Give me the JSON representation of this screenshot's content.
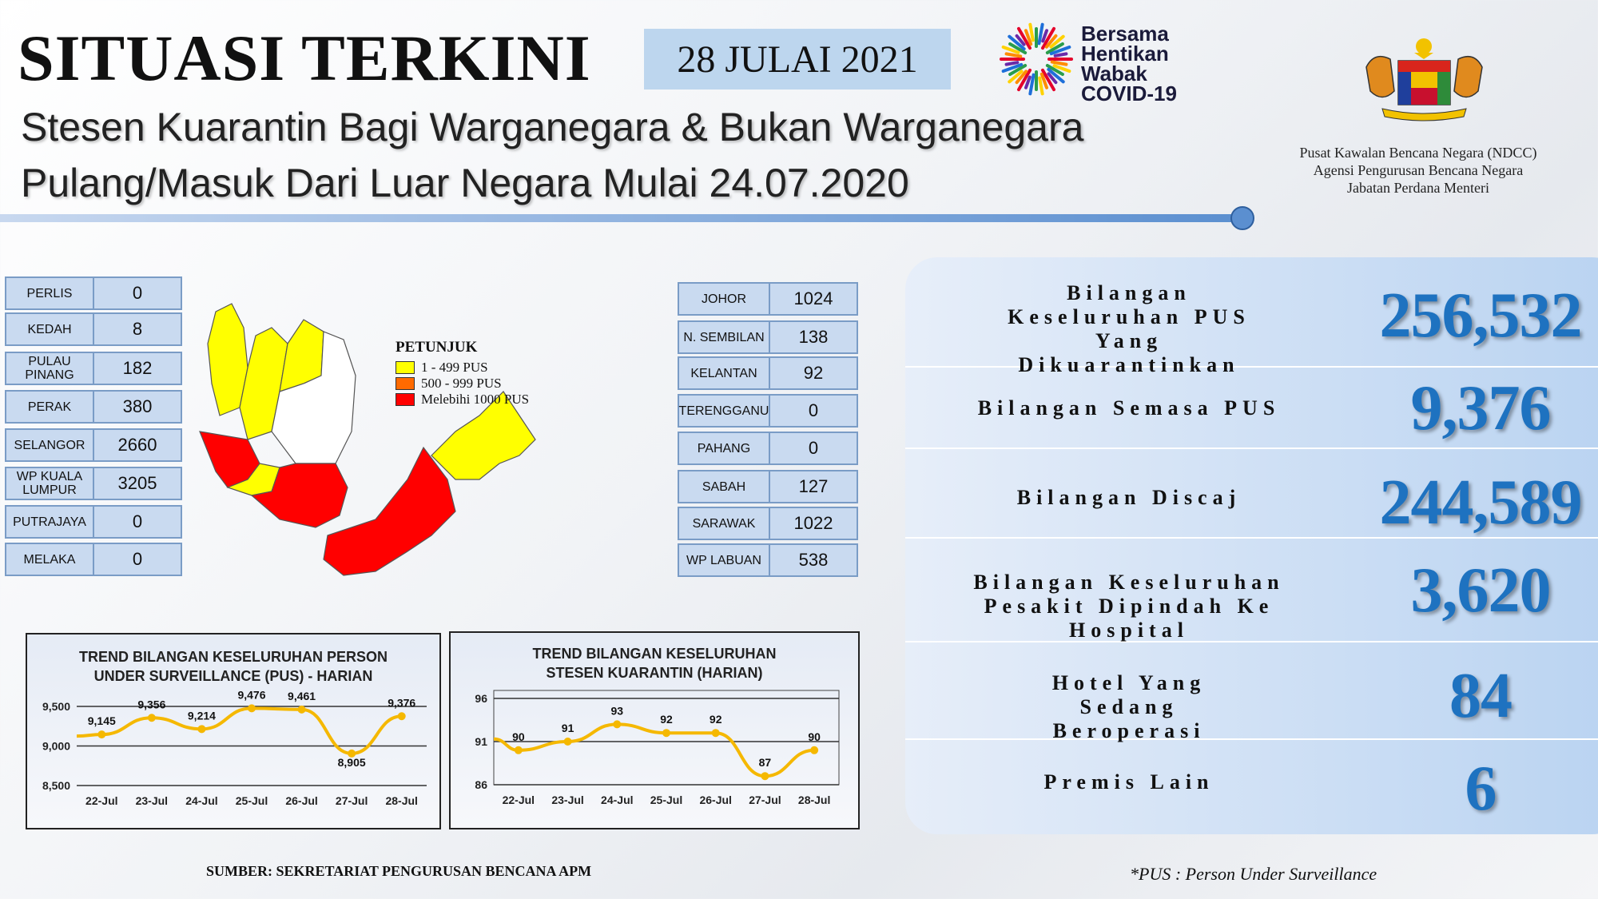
{
  "header": {
    "title": "SITUASI TERKINI",
    "date": "28 JULAI 2021",
    "subtitle_line1": "Stesen Kuarantin Bagi Warganegara & Bukan Warganegara",
    "subtitle_line2": "Pulang/Masuk Dari Luar Negara Mulai 24.07.2020",
    "campaign_logo_text": [
      "Bersama",
      "Hentikan",
      "Wabak",
      "COVID-19"
    ],
    "agency_lines": [
      "Pusat Kawalan Bencana Negara (NDCC)",
      "Agensi Pengurusan Bencana Negara",
      "Jabatan Perdana Menteri"
    ]
  },
  "states_left": [
    {
      "name": "PERLIS",
      "value": "0"
    },
    {
      "name": "KEDAH",
      "value": "8"
    },
    {
      "name": "PULAU PINANG",
      "value": "182"
    },
    {
      "name": "PERAK",
      "value": "380"
    },
    {
      "name": "SELANGOR",
      "value": "2660"
    },
    {
      "name": "WP KUALA LUMPUR",
      "value": "3205"
    },
    {
      "name": "PUTRAJAYA",
      "value": "0"
    },
    {
      "name": "MELAKA",
      "value": "0"
    }
  ],
  "states_right": [
    {
      "name": "JOHOR",
      "value": "1024"
    },
    {
      "name": "N. SEMBILAN",
      "value": "138"
    },
    {
      "name": "KELANTAN",
      "value": "92"
    },
    {
      "name": "TERENGGANU",
      "value": "0"
    },
    {
      "name": "PAHANG",
      "value": "0"
    },
    {
      "name": "SABAH",
      "value": "127"
    },
    {
      "name": "SARAWAK",
      "value": "1022"
    },
    {
      "name": "WP LABUAN",
      "value": "538"
    }
  ],
  "legend": {
    "title": "PETUNJUK",
    "items": [
      {
        "label": "1 - 499 PUS",
        "color": "#ffff00"
      },
      {
        "label": "500 - 999 PUS",
        "color": "#ff6a00"
      },
      {
        "label": "Melebihi 1000 PUS",
        "color": "#ff0000"
      }
    ]
  },
  "stats": [
    {
      "label": "Bilangan Keseluruhan PUS Yang Dikuarantinkan",
      "value": "256,532"
    },
    {
      "label": "Bilangan Semasa PUS",
      "value": "9,376"
    },
    {
      "label": "Bilangan Discaj",
      "value": "244,589"
    },
    {
      "label": "Bilangan Keseluruhan Pesakit Dipindah Ke Hospital",
      "value": "3,620"
    },
    {
      "label": "Hotel Yang Sedang Beroperasi",
      "value": "84"
    },
    {
      "label": "Premis Lain",
      "value": "6"
    }
  ],
  "chart_data": [
    {
      "type": "line",
      "title": "TREND BILANGAN KESELURUHAN PERSON UNDER SURVEILLANCE (PUS) - HARIAN",
      "categories": [
        "22-Jul",
        "23-Jul",
        "24-Jul",
        "25-Jul",
        "26-Jul",
        "27-Jul",
        "28-Jul"
      ],
      "values": [
        9145,
        9356,
        9214,
        9476,
        9461,
        8905,
        9376
      ],
      "data_labels": [
        "9,145",
        "9,356",
        "9,214",
        "9,476",
        "9,461",
        "8,905",
        "9,376"
      ],
      "yticks": [
        8500,
        9000,
        9500
      ],
      "ytick_labels": [
        "8,500",
        "9,000",
        "9,500"
      ],
      "ylim": [
        8500,
        9500
      ],
      "color": "#f5b800",
      "grid": true
    },
    {
      "type": "line",
      "title": "TREND BILANGAN KESELURUHAN STESEN KUARANTIN (HARIAN)",
      "categories": [
        "22-Jul",
        "23-Jul",
        "24-Jul",
        "25-Jul",
        "26-Jul",
        "27-Jul",
        "28-Jul"
      ],
      "values": [
        90,
        91,
        93,
        92,
        92,
        87,
        90
      ],
      "data_labels": [
        "90",
        "91",
        "93",
        "92",
        "92",
        "87",
        "90"
      ],
      "yticks": [
        86,
        91,
        96
      ],
      "ytick_labels": [
        "86",
        "91",
        "96"
      ],
      "ylim": [
        86,
        96
      ],
      "color": "#f5b800",
      "grid": true
    }
  ],
  "footer": {
    "source": "SUMBER: SEKRETARIAT PENGURUSAN BENCANA APM",
    "note": "*PUS : Person Under Surveillance"
  }
}
